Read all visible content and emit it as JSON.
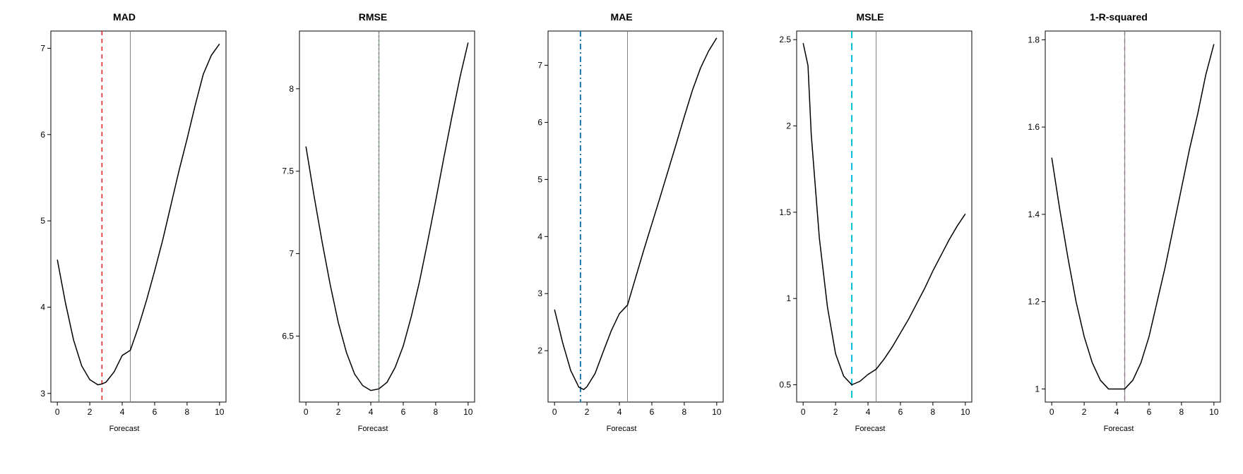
{
  "figure": {
    "background_color": "#ffffff",
    "panel_border_color": "#000000",
    "curve_color": "#000000",
    "curve_width": 1.5,
    "tick_font_size": 12,
    "title_font_size": 14,
    "label_font_size": 11,
    "xlabel": "Forecast",
    "x_ticks": [
      0,
      2,
      4,
      6,
      8,
      10
    ],
    "xlim": [
      -0.4,
      10.4
    ],
    "panels": [
      {
        "title": "MAD",
        "ylim": [
          2.9,
          7.2
        ],
        "y_ticks": [
          3,
          4,
          5,
          6,
          7
        ],
        "curve": [
          [
            0.0,
            4.55
          ],
          [
            0.5,
            4.05
          ],
          [
            1.0,
            3.62
          ],
          [
            1.5,
            3.32
          ],
          [
            2.0,
            3.16
          ],
          [
            2.5,
            3.1
          ],
          [
            2.75,
            3.11
          ],
          [
            3.0,
            3.13
          ],
          [
            3.5,
            3.25
          ],
          [
            4.0,
            3.44
          ],
          [
            4.5,
            3.5
          ],
          [
            5.0,
            3.77
          ],
          [
            5.5,
            4.08
          ],
          [
            6.0,
            4.42
          ],
          [
            6.5,
            4.78
          ],
          [
            7.0,
            5.18
          ],
          [
            7.5,
            5.58
          ],
          [
            8.0,
            5.95
          ],
          [
            8.5,
            6.34
          ],
          [
            9.0,
            6.7
          ],
          [
            9.5,
            6.92
          ],
          [
            10.0,
            7.05
          ]
        ],
        "vlines": [
          {
            "x": 2.75,
            "color": "#e41a1c",
            "dash": "6,5",
            "width": 1.5
          },
          {
            "x": 4.5,
            "color": "#808080",
            "dash": "",
            "width": 1
          }
        ]
      },
      {
        "title": "RMSE",
        "ylim": [
          6.1,
          8.35
        ],
        "y_ticks": [
          6.5,
          7.0,
          7.5,
          8.0
        ],
        "curve": [
          [
            0.0,
            7.65
          ],
          [
            0.5,
            7.35
          ],
          [
            1.0,
            7.07
          ],
          [
            1.5,
            6.81
          ],
          [
            2.0,
            6.58
          ],
          [
            2.5,
            6.4
          ],
          [
            3.0,
            6.27
          ],
          [
            3.5,
            6.2
          ],
          [
            4.0,
            6.17
          ],
          [
            4.5,
            6.18
          ],
          [
            5.0,
            6.22
          ],
          [
            5.5,
            6.31
          ],
          [
            6.0,
            6.44
          ],
          [
            6.5,
            6.62
          ],
          [
            7.0,
            6.83
          ],
          [
            7.5,
            7.07
          ],
          [
            8.0,
            7.32
          ],
          [
            8.5,
            7.58
          ],
          [
            9.0,
            7.83
          ],
          [
            9.5,
            8.07
          ],
          [
            10.0,
            8.28
          ]
        ],
        "vlines": [
          {
            "x": 4.5,
            "color": "#33a02c",
            "dash": "3,3",
            "width": 1.5
          },
          {
            "x": 4.5,
            "color": "#808080",
            "dash": "",
            "width": 1
          }
        ]
      },
      {
        "title": "MAE",
        "ylim": [
          1.1,
          7.6
        ],
        "y_ticks": [
          2,
          3,
          4,
          5,
          6,
          7
        ],
        "curve": [
          [
            0.0,
            2.72
          ],
          [
            0.5,
            2.14
          ],
          [
            1.0,
            1.65
          ],
          [
            1.5,
            1.36
          ],
          [
            1.8,
            1.32
          ],
          [
            2.0,
            1.37
          ],
          [
            2.5,
            1.6
          ],
          [
            3.0,
            1.98
          ],
          [
            3.5,
            2.35
          ],
          [
            4.0,
            2.65
          ],
          [
            4.5,
            2.8
          ],
          [
            5.0,
            3.28
          ],
          [
            5.5,
            3.76
          ],
          [
            6.0,
            4.22
          ],
          [
            6.5,
            4.68
          ],
          [
            7.0,
            5.15
          ],
          [
            7.5,
            5.62
          ],
          [
            8.0,
            6.1
          ],
          [
            8.5,
            6.56
          ],
          [
            9.0,
            6.95
          ],
          [
            9.5,
            7.25
          ],
          [
            10.0,
            7.48
          ]
        ],
        "vlines": [
          {
            "x": 1.6,
            "color": "#1f78b4",
            "dash": "8,4,2,4",
            "width": 2
          },
          {
            "x": 4.5,
            "color": "#808080",
            "dash": "",
            "width": 1
          }
        ]
      },
      {
        "title": "MSLE",
        "ylim": [
          0.4,
          2.55
        ],
        "y_ticks": [
          0.5,
          1.0,
          1.5,
          2.0,
          2.5
        ],
        "curve": [
          [
            0.0,
            2.48
          ],
          [
            0.3,
            2.35
          ],
          [
            0.5,
            1.95
          ],
          [
            1.0,
            1.35
          ],
          [
            1.5,
            0.95
          ],
          [
            2.0,
            0.68
          ],
          [
            2.5,
            0.55
          ],
          [
            3.0,
            0.5
          ],
          [
            3.5,
            0.52
          ],
          [
            4.0,
            0.56
          ],
          [
            4.5,
            0.59
          ],
          [
            5.0,
            0.65
          ],
          [
            5.5,
            0.72
          ],
          [
            6.0,
            0.8
          ],
          [
            6.5,
            0.88
          ],
          [
            7.0,
            0.97
          ],
          [
            7.5,
            1.06
          ],
          [
            8.0,
            1.16
          ],
          [
            8.5,
            1.25
          ],
          [
            9.0,
            1.34
          ],
          [
            9.5,
            1.42
          ],
          [
            10.0,
            1.49
          ]
        ],
        "vlines": [
          {
            "x": 3.0,
            "color": "#00c0d8",
            "dash": "10,7",
            "width": 2
          },
          {
            "x": 4.5,
            "color": "#808080",
            "dash": "",
            "width": 1
          }
        ]
      },
      {
        "title": "1-R-squared",
        "ylim": [
          0.97,
          1.82
        ],
        "y_ticks": [
          1.0,
          1.2,
          1.4,
          1.6,
          1.8
        ],
        "curve": [
          [
            0.0,
            1.53
          ],
          [
            0.5,
            1.41
          ],
          [
            1.0,
            1.3
          ],
          [
            1.5,
            1.2
          ],
          [
            2.0,
            1.12
          ],
          [
            2.5,
            1.06
          ],
          [
            3.0,
            1.02
          ],
          [
            3.5,
            1.0
          ],
          [
            4.0,
            1.0
          ],
          [
            4.5,
            1.0
          ],
          [
            5.0,
            1.02
          ],
          [
            5.5,
            1.06
          ],
          [
            6.0,
            1.12
          ],
          [
            6.5,
            1.2
          ],
          [
            7.0,
            1.28
          ],
          [
            7.5,
            1.37
          ],
          [
            8.0,
            1.46
          ],
          [
            8.5,
            1.55
          ],
          [
            9.0,
            1.63
          ],
          [
            9.5,
            1.72
          ],
          [
            10.0,
            1.79
          ]
        ],
        "vlines": [
          {
            "x": 4.5,
            "color": "#c060c0",
            "dash": "6,5",
            "width": 1.5
          },
          {
            "x": 4.5,
            "color": "#808080",
            "dash": "",
            "width": 1
          }
        ]
      }
    ]
  }
}
